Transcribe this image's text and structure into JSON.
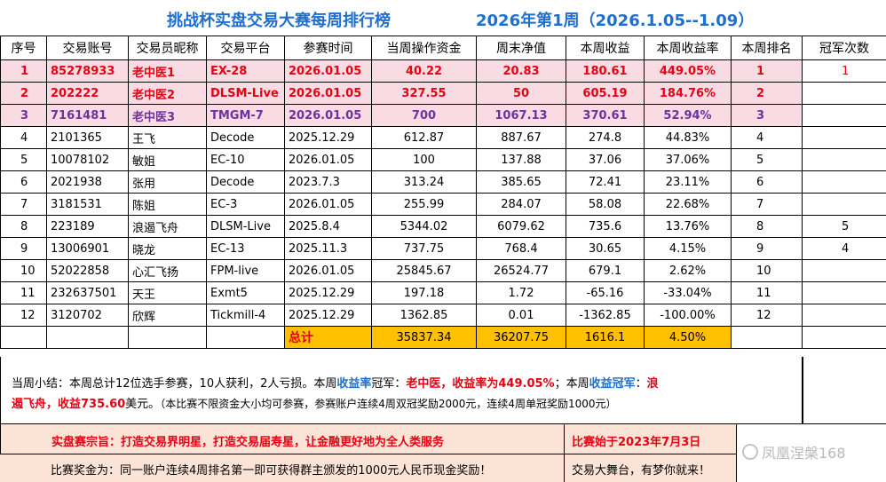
{
  "title": "挑战杯实盘交易大赛每周排行榜",
  "week": "2026年第1周（2026.1.05--1.09）",
  "headers": [
    "序号",
    "交易账号",
    "交易员昵称",
    "交易平台",
    "参赛时间",
    "当周操作资金",
    "周末净值",
    "本周收益",
    "本周收益率",
    "本周排名",
    "冠军次数"
  ],
  "rows": [
    [
      "1",
      "85278933",
      "老中医1",
      "EX-28",
      "2026.01.05",
      "40.22",
      "20.83",
      "180.61",
      "449.05%",
      "1",
      "1"
    ],
    [
      "2",
      "202222",
      "老中医2",
      "DLSM-Live",
      "2026.01.05",
      "327.55",
      "50",
      "605.19",
      "184.76%",
      "2",
      ""
    ],
    [
      "3",
      "7161481",
      "老中医3",
      "TMGM-7",
      "2026.01.05",
      "700",
      "1067.13",
      "370.61",
      "52.94%",
      "3",
      ""
    ],
    [
      "4",
      "2101365",
      "王飞",
      "Decode",
      "2025.12.29",
      "612.87",
      "887.67",
      "274.8",
      "44.83%",
      "4",
      ""
    ],
    [
      "5",
      "10078102",
      "敏姐",
      "EC-10",
      "2026.01.05",
      "100",
      "137.88",
      "37.06",
      "37.06%",
      "5",
      ""
    ],
    [
      "6",
      "2021938",
      "张用",
      "Decode",
      "2023.7.3",
      "313.24",
      "385.65",
      "72.41",
      "23.11%",
      "6",
      ""
    ],
    [
      "7",
      "3181531",
      "陈姐",
      "EC-3",
      "2026.01.05",
      "255.99",
      "284.07",
      "58.08",
      "22.68%",
      "7",
      ""
    ],
    [
      "8",
      "223189",
      "浪遏飞舟",
      "DLSM-Live",
      "2025.8.4",
      "5344.02",
      "6079.62",
      "735.6",
      "13.76%",
      "8",
      "5"
    ],
    [
      "9",
      "13006901",
      "晓龙",
      "EC-13",
      "2025.11.3",
      "737.75",
      "768.4",
      "30.65",
      "4.15%",
      "9",
      "4"
    ],
    [
      "10",
      "52022858",
      "心汇飞扬",
      "FPM-live",
      "2026.01.05",
      "25845.67",
      "26524.77",
      "679.1",
      "2.62%",
      "10",
      ""
    ],
    [
      "11",
      "232637501",
      "天王",
      "Exmt5",
      "2025.12.29",
      "197.18",
      "1.72",
      "-65.16",
      "-33.04%",
      "11",
      ""
    ],
    [
      "12",
      "3120702",
      "欣辉",
      "Tickmill-4",
      "2025.12.29",
      "1362.85",
      "0.01",
      "-1362.85",
      "-100.00%",
      "12",
      ""
    ]
  ],
  "total": {
    "label": "总计",
    "capital": "35837.34",
    "nav": "36207.75",
    "profit": "1616.1",
    "rate": "4.50%"
  },
  "summary": {
    "p1": "当周小结：本周总计12位选手参赛，10人获利，2人亏损。本周",
    "rate_word": "收益率",
    "p2": "冠军：",
    "rate_champ": "老中医，收益率为449.05%",
    "p3": "；本周",
    "profit_word": "收益冠军",
    "p4": "：",
    "profit_champ_a": "浪",
    "profit_champ_b": "遏飞舟，收益735.60",
    "p5": "美元。",
    "note": "（本比赛不限资金大小均可参赛，参赛账户连续4周双冠奖励2000元，连续4周单冠奖励1000元）"
  },
  "aim": "实盘赛宗旨：打造交易界明星，打造交易届寿星，让金融更好地为全人类服务",
  "since": "比赛始于2023年7月3日",
  "prize": "比赛奖金为：同一账户连续4周排名第一即可获得群主颁发的1000元人民币现金奖励！",
  "stage": "交易大舞台，有梦你就来！",
  "watermark": "凤凰涅槃168",
  "colors": {
    "title": "#1f6fd0",
    "top_row_bg": "#f8dbe3",
    "red": "#e60012",
    "purple": "#7030a0",
    "total_bg": "#ffc000",
    "footer_bg": "#fbe3d6"
  }
}
